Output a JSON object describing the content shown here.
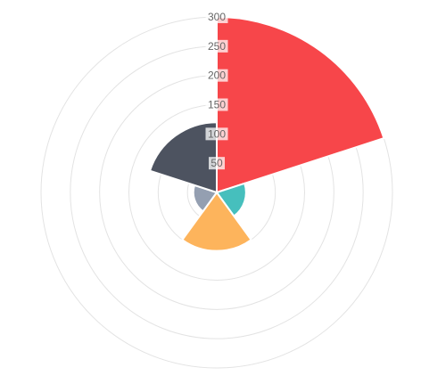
{
  "chart_data": {
    "type": "polarArea",
    "title": "",
    "rlim": [
      0,
      300
    ],
    "ticks": [
      50,
      100,
      150,
      200,
      250,
      300
    ],
    "grid": true,
    "legend": "none",
    "segments": [
      {
        "value": 300,
        "color": "#F7464A"
      },
      {
        "value": 50,
        "color": "#46BFBD"
      },
      {
        "value": 100,
        "color": "#FDB45C"
      },
      {
        "value": 40,
        "color": "#949FB1"
      },
      {
        "value": 120,
        "color": "#4D5360"
      }
    ]
  }
}
